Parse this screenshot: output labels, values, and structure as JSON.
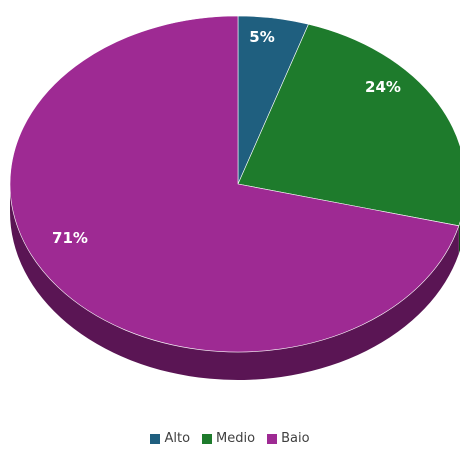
{
  "chart_data": {
    "type": "pie",
    "title": "",
    "slices": [
      {
        "label": "Alto",
        "value": 5,
        "display": "5%",
        "color": "#1f5f7f",
        "side_color": "#123a4f"
      },
      {
        "label": "Medio",
        "value": 24,
        "display": "24%",
        "color": "#1e7b2c",
        "side_color": "#114a18"
      },
      {
        "label": "Baio",
        "value": 71,
        "display": "71%",
        "color": "#9e2a93",
        "side_color": "#5a1554"
      }
    ],
    "legend_position": "bottom",
    "style": "3d"
  }
}
